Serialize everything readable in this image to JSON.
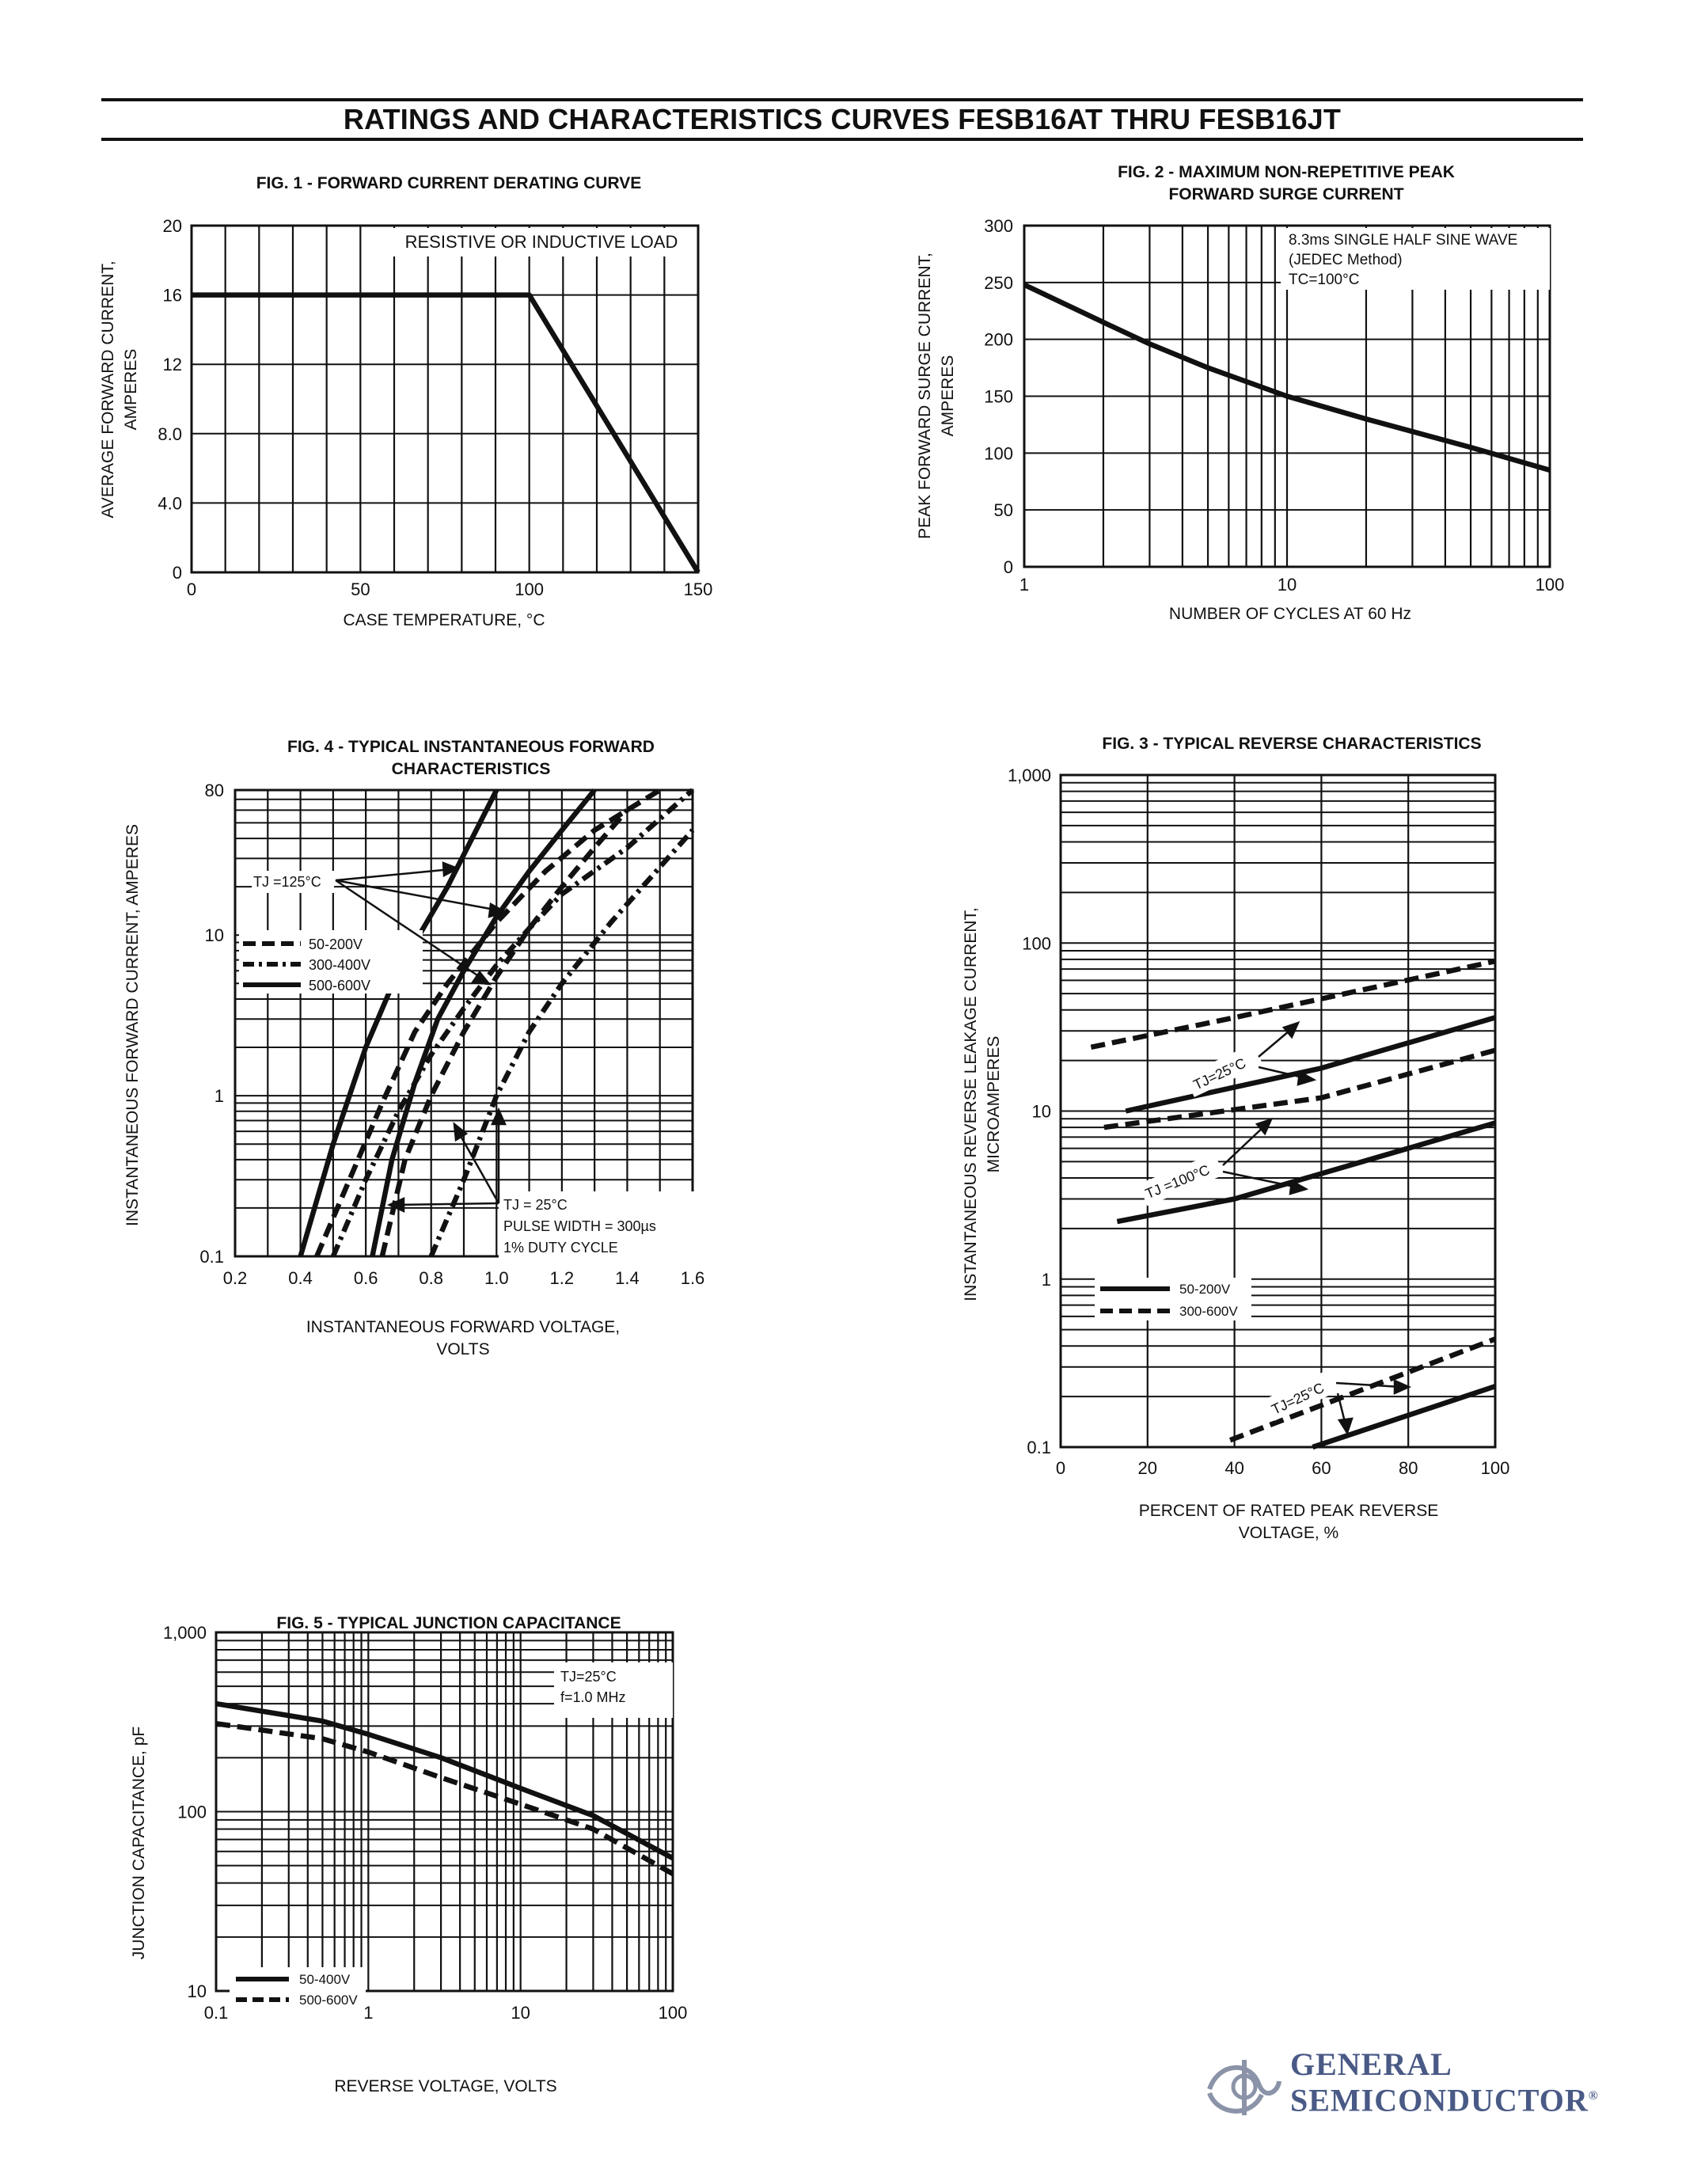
{
  "page": {
    "title": "RATINGS AND CHARACTERISTICS CURVES FESB16AT THRU FESB16JT"
  },
  "logo": {
    "line1": "GENERAL",
    "line2": "SEMICONDUCTOR",
    "reg": "®"
  },
  "chart_data": [
    {
      "id": "fig1",
      "type": "line",
      "title": "FIG. 1 - FORWARD CURRENT DERATING CURVE",
      "xlabel": "CASE TEMPERATURE, °C",
      "ylabel": [
        "AVERAGE FORWARD CURRENT,",
        "AMPERES"
      ],
      "xscale": "linear",
      "yscale": "linear",
      "xlim": [
        0,
        150
      ],
      "ylim": [
        0,
        20
      ],
      "xticks": [
        0,
        50,
        100,
        150
      ],
      "xtick_labels": [
        "0",
        "50",
        "100",
        "150"
      ],
      "yticks": [
        0,
        4,
        8,
        12,
        16,
        20
      ],
      "ytick_labels": [
        "0",
        "4.0",
        "8.0",
        "12",
        "16",
        "20"
      ],
      "vgrid": [
        0,
        10,
        20,
        30,
        40,
        50,
        60,
        70,
        80,
        90,
        100,
        110,
        120,
        130,
        140,
        150
      ],
      "hgrid": [
        0,
        4,
        8,
        12,
        16,
        20
      ],
      "annotations": [
        "RESISTIVE OR INDUCTIVE LOAD"
      ],
      "series": [
        {
          "name": "derating",
          "style": "solid",
          "x": [
            0,
            100,
            150
          ],
          "y": [
            16,
            16,
            0
          ]
        }
      ]
    },
    {
      "id": "fig2",
      "type": "line",
      "title": "FIG. 2 - MAXIMUM NON-REPETITIVE PEAK FORWARD SURGE CURRENT",
      "title_lines": [
        "FIG. 2 - MAXIMUM NON-REPETITIVE PEAK",
        "FORWARD SURGE CURRENT"
      ],
      "xlabel": "NUMBER OF CYCLES AT 60 Hz",
      "ylabel": [
        "PEAK FORWARD SURGE CURRENT,",
        "AMPERES"
      ],
      "xscale": "log",
      "yscale": "linear",
      "xlim": [
        1,
        100
      ],
      "ylim": [
        0,
        300
      ],
      "xticks": [
        1,
        10,
        100
      ],
      "xtick_labels": [
        "1",
        "10",
        "100"
      ],
      "yticks": [
        0,
        50,
        100,
        150,
        200,
        250,
        300
      ],
      "ytick_labels": [
        "0",
        "50",
        "100",
        "150",
        "200",
        "250",
        "300"
      ],
      "vgrid": [
        1,
        2,
        3,
        4,
        5,
        6,
        7,
        8,
        9,
        10,
        20,
        30,
        40,
        50,
        60,
        70,
        80,
        90,
        100
      ],
      "hgrid": [
        0,
        50,
        100,
        150,
        200,
        250,
        300
      ],
      "annotations": [
        "8.3ms SINGLE HALF SINE WAVE",
        "(JEDEC Method)",
        "TC=100°C"
      ],
      "series": [
        {
          "name": "surge",
          "style": "solid",
          "x": [
            1,
            2,
            3,
            5,
            10,
            20,
            50,
            100
          ],
          "y": [
            248,
            215,
            196,
            175,
            150,
            130,
            105,
            85
          ]
        }
      ]
    },
    {
      "id": "fig4",
      "type": "line",
      "title": "FIG. 4 - TYPICAL INSTANTANEOUS FORWARD CHARACTERISTICS",
      "title_lines": [
        "FIG. 4 - TYPICAL INSTANTANEOUS FORWARD",
        "CHARACTERISTICS"
      ],
      "xlabel": [
        "INSTANTANEOUS FORWARD VOLTAGE,",
        "VOLTS"
      ],
      "ylabel": [
        "INSTANTANEOUS FORWARD CURRENT, AMPERES"
      ],
      "xscale": "linear",
      "yscale": "log",
      "xlim": [
        0.2,
        1.6
      ],
      "ylim": [
        0.1,
        80
      ],
      "xticks": [
        0.2,
        0.4,
        0.6,
        0.8,
        1.0,
        1.2,
        1.4,
        1.6
      ],
      "xtick_labels": [
        "0.2",
        "0.4",
        "0.6",
        "0.8",
        "1.0",
        "1.2",
        "1.4",
        "1.6"
      ],
      "yticks": [
        0.1,
        1,
        10,
        80
      ],
      "ytick_labels": [
        "0.1",
        "1",
        "10",
        "80"
      ],
      "vgrid": [
        0.2,
        0.3,
        0.4,
        0.5,
        0.6,
        0.7,
        0.8,
        0.9,
        1.0,
        1.1,
        1.2,
        1.3,
        1.4,
        1.5,
        1.6
      ],
      "hgrid": [
        0.1,
        0.2,
        0.3,
        0.4,
        0.5,
        0.6,
        0.7,
        0.8,
        0.9,
        1,
        2,
        3,
        4,
        5,
        6,
        7,
        8,
        9,
        10,
        20,
        30,
        40,
        50,
        60,
        70,
        80
      ],
      "legend": [
        {
          "label": "50-200V",
          "style": "dashed"
        },
        {
          "label": "300-400V",
          "style": "dashdot"
        },
        {
          "label": "500-600V",
          "style": "solid"
        }
      ],
      "annotations": [
        "TJ =125°C",
        "TJ = 25°C",
        "PULSE WIDTH = 300µs",
        "1% DUTY CYCLE"
      ],
      "series": [
        {
          "name": "500-600V TJ=125°C",
          "style": "solid",
          "x": [
            0.4,
            0.5,
            0.6,
            0.7,
            0.85,
            1.0
          ],
          "y": [
            0.1,
            0.5,
            2.0,
            6.0,
            20,
            80
          ]
        },
        {
          "name": "50-200V TJ=125°C",
          "style": "dashed",
          "x": [
            0.45,
            0.55,
            0.65,
            0.75,
            0.85,
            1.0,
            1.15,
            1.3,
            1.5
          ],
          "y": [
            0.1,
            0.3,
            0.9,
            2.5,
            5.0,
            12,
            25,
            45,
            80
          ]
        },
        {
          "name": "300-400V TJ=125°C",
          "style": "dashdot",
          "x": [
            0.5,
            0.6,
            0.7,
            0.8,
            0.9,
            1.0,
            1.1,
            1.2,
            1.4,
            1.6
          ],
          "y": [
            0.1,
            0.3,
            0.8,
            1.8,
            3.5,
            6.5,
            11,
            18,
            35,
            80
          ]
        },
        {
          "name": "500-600V TJ=25°C",
          "style": "solid",
          "x": [
            0.62,
            0.68,
            0.75,
            0.82,
            0.9,
            1.0,
            1.1,
            1.2,
            1.3
          ],
          "y": [
            0.1,
            0.4,
            1.2,
            3.0,
            6.0,
            13,
            25,
            45,
            80
          ]
        },
        {
          "name": "50-200V TJ=25°C",
          "style": "dashed",
          "x": [
            0.65,
            0.72,
            0.8,
            0.9,
            1.0,
            1.1,
            1.2,
            1.3,
            1.4
          ],
          "y": [
            0.1,
            0.4,
            1.0,
            2.5,
            5.5,
            11,
            20,
            35,
            60
          ]
        },
        {
          "name": "300-400V TJ=25°C",
          "style": "dashdot",
          "x": [
            0.8,
            0.9,
            1.0,
            1.1,
            1.2,
            1.35,
            1.6
          ],
          "y": [
            0.1,
            0.3,
            1.0,
            2.5,
            5.0,
            12,
            45
          ]
        }
      ]
    },
    {
      "id": "fig3",
      "type": "line",
      "title": "FIG. 3 - TYPICAL REVERSE CHARACTERISTICS",
      "xlabel": [
        "PERCENT OF RATED PEAK REVERSE",
        "VOLTAGE, %"
      ],
      "ylabel": [
        "INSTANTANEOUS REVERSE LEAKAGE  CURRENT,",
        "MICROAMPERES"
      ],
      "xscale": "linear",
      "yscale": "log",
      "xlim": [
        0,
        100
      ],
      "ylim": [
        0.1,
        1000
      ],
      "xticks": [
        0,
        20,
        40,
        60,
        80,
        100
      ],
      "xtick_labels": [
        "0",
        "20",
        "40",
        "60",
        "80",
        "100"
      ],
      "yticks": [
        0.1,
        1,
        10,
        100,
        1000
      ],
      "ytick_labels": [
        "0.1",
        "1",
        "10",
        "100",
        "1,000"
      ],
      "vgrid": [
        0,
        20,
        40,
        60,
        80,
        100
      ],
      "hgrid": [
        0.1,
        0.2,
        0.3,
        0.4,
        0.5,
        0.6,
        0.7,
        0.8,
        0.9,
        1,
        2,
        3,
        4,
        5,
        6,
        7,
        8,
        9,
        10,
        20,
        30,
        40,
        50,
        60,
        70,
        80,
        90,
        100,
        200,
        300,
        400,
        500,
        600,
        700,
        800,
        900,
        1000
      ],
      "legend": [
        {
          "label": "50-200V",
          "style": "solid"
        },
        {
          "label": "300-600V",
          "style": "dashed"
        }
      ],
      "annotations": [
        "TJ=25°C",
        "TJ =100°C",
        "TJ=25°C"
      ],
      "series": [
        {
          "name": "300-600V upper",
          "style": "dashed",
          "x": [
            7,
            40,
            100
          ],
          "y": [
            24,
            36,
            78
          ]
        },
        {
          "name": "50-200V upper",
          "style": "solid",
          "x": [
            15,
            60,
            100
          ],
          "y": [
            10,
            18,
            36
          ]
        },
        {
          "name": "300-600V mid",
          "style": "dashed",
          "x": [
            10,
            60,
            100
          ],
          "y": [
            8,
            12,
            23
          ]
        },
        {
          "name": "50-200V mid",
          "style": "solid",
          "x": [
            13,
            40,
            100
          ],
          "y": [
            2.2,
            3.0,
            8.5
          ]
        },
        {
          "name": "300-600V low",
          "style": "dashed",
          "x": [
            39,
            100
          ],
          "y": [
            0.11,
            0.44
          ]
        },
        {
          "name": "50-200V low",
          "style": "solid",
          "x": [
            58,
            100
          ],
          "y": [
            0.1,
            0.23
          ]
        }
      ]
    },
    {
      "id": "fig5",
      "type": "line",
      "title": "FIG. 5 - TYPICAL JUNCTION CAPACITANCE",
      "xlabel": "REVERSE VOLTAGE, VOLTS",
      "ylabel": [
        "JUNCTION CAPACITANCE, pF"
      ],
      "xscale": "log",
      "yscale": "log",
      "xlim": [
        0.1,
        100
      ],
      "ylim": [
        10,
        1000
      ],
      "xticks": [
        0.1,
        1,
        10,
        100
      ],
      "xtick_labels": [
        "0.1",
        "1",
        "10",
        "100"
      ],
      "yticks": [
        10,
        100,
        1000
      ],
      "ytick_labels": [
        "10",
        "100",
        "1,000"
      ],
      "vgrid": [
        0.1,
        0.2,
        0.3,
        0.4,
        0.5,
        0.6,
        0.7,
        0.8,
        0.9,
        1,
        2,
        3,
        4,
        5,
        6,
        7,
        8,
        9,
        10,
        20,
        30,
        40,
        50,
        60,
        70,
        80,
        90,
        100
      ],
      "hgrid": [
        10,
        20,
        30,
        40,
        50,
        60,
        70,
        80,
        90,
        100,
        200,
        300,
        400,
        500,
        600,
        700,
        800,
        900,
        1000
      ],
      "legend": [
        {
          "label": "50-400V",
          "style": "solid"
        },
        {
          "label": "500-600V",
          "style": "dashed"
        }
      ],
      "annotations": [
        "TJ=25°C",
        "f=1.0 MHz"
      ],
      "series": [
        {
          "name": "50-400V",
          "style": "solid",
          "x": [
            0.1,
            0.5,
            1,
            3,
            10,
            30,
            100
          ],
          "y": [
            400,
            320,
            270,
            200,
            135,
            95,
            55
          ]
        },
        {
          "name": "500-600V",
          "style": "dashed",
          "x": [
            0.1,
            0.5,
            1,
            3,
            10,
            30,
            100
          ],
          "y": [
            310,
            255,
            215,
            155,
            110,
            80,
            45
          ]
        }
      ]
    }
  ]
}
